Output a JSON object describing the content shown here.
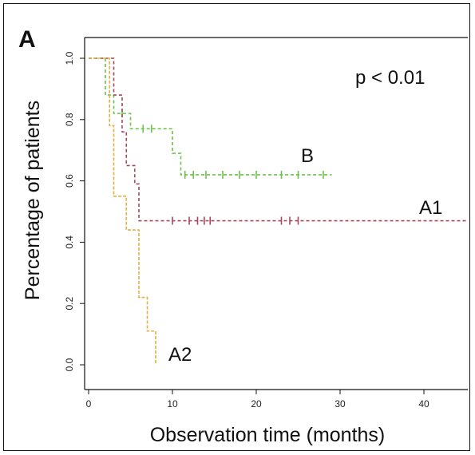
{
  "chart_data": {
    "type": "line",
    "subtype": "kaplan-meier",
    "panel_label": "A",
    "annotation": "p < 0.01",
    "xlabel": "Observation time (months)",
    "ylabel": "Percentage of patients",
    "xlim": [
      0,
      45
    ],
    "ylim": [
      0,
      1.0
    ],
    "x_ticks": [
      0,
      10,
      20,
      30,
      40
    ],
    "y_ticks": [
      0.0,
      0.2,
      0.4,
      0.6,
      0.8,
      1.0
    ],
    "x_tick_labels": [
      "0",
      "10",
      "20",
      "30",
      "40"
    ],
    "y_tick_labels": [
      "0.0",
      "0.2",
      "0.4",
      "0.6",
      "0.8",
      "1.0"
    ],
    "grid": false,
    "legend": "none",
    "series": [
      {
        "name": "B",
        "color": "#6cc24a",
        "steps": [
          [
            0,
            1.0
          ],
          [
            2,
            0.88
          ],
          [
            3,
            0.82
          ],
          [
            5,
            0.77
          ],
          [
            10,
            0.69
          ],
          [
            11,
            0.62
          ],
          [
            29,
            0.62
          ]
        ],
        "censors": [
          [
            4,
            0.82
          ],
          [
            6.5,
            0.77
          ],
          [
            7.5,
            0.77
          ],
          [
            11.5,
            0.62
          ],
          [
            12.5,
            0.62
          ],
          [
            14,
            0.62
          ],
          [
            16,
            0.62
          ],
          [
            18,
            0.62
          ],
          [
            20,
            0.62
          ],
          [
            23,
            0.62
          ],
          [
            25,
            0.62
          ],
          [
            28,
            0.62
          ]
        ]
      },
      {
        "name": "A1",
        "color": "#a4475a",
        "steps": [
          [
            0,
            1.0
          ],
          [
            3,
            0.88
          ],
          [
            4,
            0.76
          ],
          [
            4.5,
            0.65
          ],
          [
            5.5,
            0.59
          ],
          [
            6,
            0.47
          ],
          [
            45,
            0.47
          ]
        ],
        "censors": [
          [
            10,
            0.47
          ],
          [
            12,
            0.47
          ],
          [
            13,
            0.47
          ],
          [
            13.8,
            0.47
          ],
          [
            14.5,
            0.47
          ],
          [
            23,
            0.47
          ],
          [
            24,
            0.47
          ],
          [
            25,
            0.47
          ]
        ]
      },
      {
        "name": "A2",
        "color": "#e0b040",
        "steps": [
          [
            0,
            1.0
          ],
          [
            2.5,
            0.78
          ],
          [
            3,
            0.55
          ],
          [
            4.5,
            0.44
          ],
          [
            6,
            0.22
          ],
          [
            7,
            0.11
          ],
          [
            8,
            0.0
          ]
        ],
        "censors": []
      }
    ]
  }
}
